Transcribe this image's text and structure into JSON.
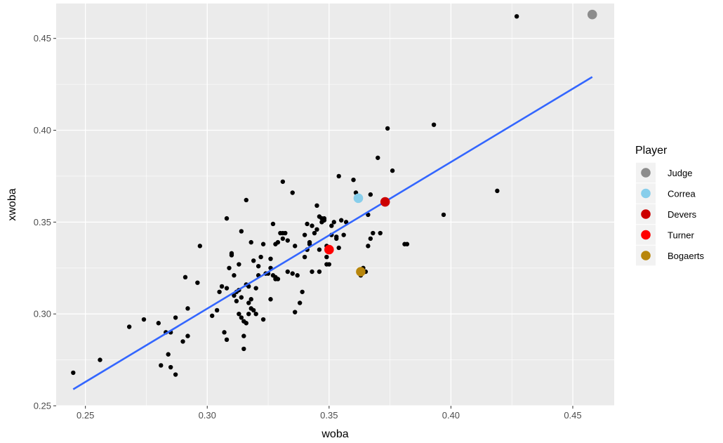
{
  "chart_data": {
    "type": "scatter",
    "title": "",
    "xlabel": "woba",
    "ylabel": "xwoba",
    "xlim": [
      0.238,
      0.467
    ],
    "ylim": [
      0.25,
      0.469
    ],
    "x_ticks": [
      0.25,
      0.3,
      0.35,
      0.4,
      0.45
    ],
    "x_tick_labels": [
      "0.25",
      "0.30",
      "0.35",
      "0.40",
      "0.45"
    ],
    "y_ticks": [
      0.25,
      0.3,
      0.35,
      0.4,
      0.45
    ],
    "y_tick_labels": [
      "0.25",
      "0.30",
      "0.35",
      "0.40",
      "0.45"
    ],
    "grid": true,
    "legend": {
      "title": "Player",
      "placement": "right",
      "entries": [
        {
          "label": "Judge",
          "color": "#8c8c8c"
        },
        {
          "label": "Correa",
          "color": "#87ceeb"
        },
        {
          "label": "Devers",
          "color": "#cc0000"
        },
        {
          "label": "Turner",
          "color": "#ff0000"
        },
        {
          "label": "Bogaerts",
          "color": "#b8860b"
        }
      ]
    },
    "highlighted_points": [
      {
        "name": "Judge",
        "x": 0.458,
        "y": 0.463,
        "color": "#8c8c8c"
      },
      {
        "name": "Correa",
        "x": 0.362,
        "y": 0.363,
        "color": "#87ceeb"
      },
      {
        "name": "Devers",
        "x": 0.373,
        "y": 0.361,
        "color": "#cc0000"
      },
      {
        "name": "Turner",
        "x": 0.35,
        "y": 0.335,
        "color": "#ff0000"
      },
      {
        "name": "Bogaerts",
        "x": 0.363,
        "y": 0.323,
        "color": "#b8860b"
      }
    ],
    "fit_line": {
      "x": [
        0.245,
        0.458
      ],
      "y": [
        0.259,
        0.429
      ],
      "color": "#3366ff"
    },
    "points": [
      [
        0.245,
        0.268
      ],
      [
        0.256,
        0.275
      ],
      [
        0.268,
        0.293
      ],
      [
        0.274,
        0.297
      ],
      [
        0.28,
        0.295
      ],
      [
        0.281,
        0.272
      ],
      [
        0.283,
        0.29
      ],
      [
        0.284,
        0.278
      ],
      [
        0.285,
        0.271
      ],
      [
        0.287,
        0.267
      ],
      [
        0.285,
        0.29
      ],
      [
        0.287,
        0.298
      ],
      [
        0.29,
        0.285
      ],
      [
        0.292,
        0.288
      ],
      [
        0.291,
        0.32
      ],
      [
        0.292,
        0.303
      ],
      [
        0.296,
        0.317
      ],
      [
        0.297,
        0.337
      ],
      [
        0.302,
        0.299
      ],
      [
        0.304,
        0.302
      ],
      [
        0.305,
        0.312
      ],
      [
        0.306,
        0.315
      ],
      [
        0.308,
        0.314
      ],
      [
        0.307,
        0.29
      ],
      [
        0.308,
        0.286
      ],
      [
        0.308,
        0.352
      ],
      [
        0.309,
        0.325
      ],
      [
        0.31,
        0.332
      ],
      [
        0.31,
        0.333
      ],
      [
        0.311,
        0.321
      ],
      [
        0.311,
        0.31
      ],
      [
        0.312,
        0.312
      ],
      [
        0.312,
        0.307
      ],
      [
        0.313,
        0.313
      ],
      [
        0.313,
        0.327
      ],
      [
        0.313,
        0.3
      ],
      [
        0.314,
        0.345
      ],
      [
        0.314,
        0.309
      ],
      [
        0.314,
        0.298
      ],
      [
        0.315,
        0.296
      ],
      [
        0.315,
        0.288
      ],
      [
        0.315,
        0.281
      ],
      [
        0.316,
        0.295
      ],
      [
        0.316,
        0.316
      ],
      [
        0.316,
        0.362
      ],
      [
        0.317,
        0.315
      ],
      [
        0.317,
        0.306
      ],
      [
        0.317,
        0.3
      ],
      [
        0.318,
        0.303
      ],
      [
        0.318,
        0.308
      ],
      [
        0.318,
        0.339
      ],
      [
        0.319,
        0.302
      ],
      [
        0.319,
        0.329
      ],
      [
        0.32,
        0.314
      ],
      [
        0.32,
        0.3
      ],
      [
        0.321,
        0.321
      ],
      [
        0.321,
        0.326
      ],
      [
        0.322,
        0.331
      ],
      [
        0.323,
        0.297
      ],
      [
        0.323,
        0.338
      ],
      [
        0.324,
        0.322
      ],
      [
        0.325,
        0.322
      ],
      [
        0.326,
        0.325
      ],
      [
        0.326,
        0.308
      ],
      [
        0.326,
        0.33
      ],
      [
        0.327,
        0.349
      ],
      [
        0.327,
        0.321
      ],
      [
        0.328,
        0.32
      ],
      [
        0.328,
        0.338
      ],
      [
        0.328,
        0.319
      ],
      [
        0.329,
        0.319
      ],
      [
        0.329,
        0.339
      ],
      [
        0.33,
        0.344
      ],
      [
        0.331,
        0.344
      ],
      [
        0.331,
        0.341
      ],
      [
        0.331,
        0.372
      ],
      [
        0.332,
        0.344
      ],
      [
        0.333,
        0.323
      ],
      [
        0.333,
        0.34
      ],
      [
        0.335,
        0.366
      ],
      [
        0.335,
        0.322
      ],
      [
        0.336,
        0.301
      ],
      [
        0.336,
        0.337
      ],
      [
        0.337,
        0.321
      ],
      [
        0.338,
        0.306
      ],
      [
        0.339,
        0.312
      ],
      [
        0.34,
        0.343
      ],
      [
        0.34,
        0.331
      ],
      [
        0.341,
        0.335
      ],
      [
        0.341,
        0.349
      ],
      [
        0.341,
        0.335
      ],
      [
        0.342,
        0.339
      ],
      [
        0.342,
        0.338
      ],
      [
        0.343,
        0.323
      ],
      [
        0.343,
        0.348
      ],
      [
        0.344,
        0.344
      ],
      [
        0.345,
        0.359
      ],
      [
        0.345,
        0.346
      ],
      [
        0.346,
        0.353
      ],
      [
        0.346,
        0.335
      ],
      [
        0.346,
        0.323
      ],
      [
        0.347,
        0.35
      ],
      [
        0.347,
        0.352
      ],
      [
        0.348,
        0.351
      ],
      [
        0.348,
        0.352
      ],
      [
        0.349,
        0.331
      ],
      [
        0.349,
        0.337
      ],
      [
        0.349,
        0.327
      ],
      [
        0.35,
        0.327
      ],
      [
        0.351,
        0.343
      ],
      [
        0.351,
        0.348
      ],
      [
        0.352,
        0.35
      ],
      [
        0.353,
        0.341
      ],
      [
        0.353,
        0.342
      ],
      [
        0.354,
        0.336
      ],
      [
        0.354,
        0.375
      ],
      [
        0.355,
        0.351
      ],
      [
        0.356,
        0.343
      ],
      [
        0.357,
        0.35
      ],
      [
        0.36,
        0.373
      ],
      [
        0.361,
        0.366
      ],
      [
        0.363,
        0.321
      ],
      [
        0.364,
        0.325
      ],
      [
        0.365,
        0.323
      ],
      [
        0.366,
        0.337
      ],
      [
        0.366,
        0.354
      ],
      [
        0.367,
        0.341
      ],
      [
        0.367,
        0.365
      ],
      [
        0.368,
        0.344
      ],
      [
        0.37,
        0.385
      ],
      [
        0.371,
        0.344
      ],
      [
        0.374,
        0.401
      ],
      [
        0.376,
        0.378
      ],
      [
        0.381,
        0.338
      ],
      [
        0.382,
        0.338
      ],
      [
        0.393,
        0.403
      ],
      [
        0.397,
        0.354
      ],
      [
        0.419,
        0.367
      ],
      [
        0.427,
        0.462
      ]
    ]
  }
}
